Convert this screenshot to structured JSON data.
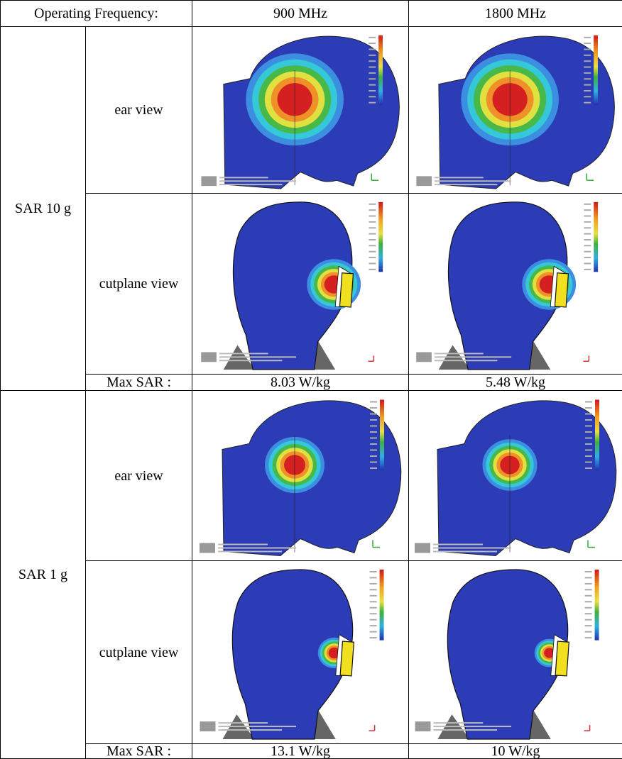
{
  "header": {
    "label": "Operating Frequency:",
    "columns": [
      "900 MHz",
      "1800 MHz"
    ]
  },
  "sections": [
    {
      "label": "SAR 10 g",
      "views": [
        "ear view",
        "cutplane view"
      ],
      "max_label": "Max SAR :",
      "max_values": [
        "8.03 W/kg",
        "5.48 W/kg"
      ]
    },
    {
      "label": "SAR 1 g",
      "views": [
        "ear view",
        "cutplane view"
      ],
      "max_label": "Max SAR :",
      "max_values": [
        "13.1 W/kg",
        "10 W/kg"
      ]
    }
  ]
}
